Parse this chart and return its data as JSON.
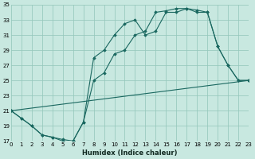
{
  "xlabel": "Humidex (Indice chaleur)",
  "bg_color": "#c8e8e0",
  "grid_color": "#96c8bc",
  "line_color": "#1a6860",
  "xlim": [
    0,
    23
  ],
  "ylim": [
    17,
    35
  ],
  "yticks": [
    17,
    19,
    21,
    23,
    25,
    27,
    29,
    31,
    33,
    35
  ],
  "xticks": [
    0,
    1,
    2,
    3,
    4,
    5,
    6,
    7,
    8,
    9,
    10,
    11,
    12,
    13,
    14,
    15,
    16,
    17,
    18,
    19,
    20,
    21,
    22,
    23
  ],
  "curve1_x": [
    0,
    1,
    2,
    3,
    4,
    5,
    6,
    7,
    8,
    9,
    10,
    11,
    12,
    13,
    14,
    15,
    16,
    17,
    18,
    19,
    20,
    21,
    22,
    23
  ],
  "curve1_y": [
    21.0,
    20.0,
    19.0,
    17.8,
    17.5,
    17.0,
    17.0,
    19.5,
    28.0,
    29.0,
    31.0,
    32.5,
    33.0,
    31.0,
    31.5,
    34.0,
    34.0,
    34.5,
    34.0,
    34.0,
    29.5,
    27.0,
    25.0,
    25.0
  ],
  "curve2_x": [
    0,
    1,
    2,
    3,
    4,
    5,
    6,
    7,
    8,
    9,
    10,
    11,
    12,
    13,
    14,
    15,
    16,
    17,
    18,
    19,
    20,
    21,
    22,
    23
  ],
  "curve2_y": [
    21.0,
    20.0,
    19.0,
    17.8,
    17.5,
    17.2,
    17.0,
    19.5,
    25.0,
    26.0,
    28.5,
    29.0,
    31.0,
    31.5,
    34.0,
    34.2,
    34.5,
    34.5,
    34.3,
    34.0,
    29.5,
    27.0,
    25.0,
    25.0
  ],
  "baseline_x": [
    0,
    23
  ],
  "baseline_y": [
    21.0,
    25.0
  ]
}
